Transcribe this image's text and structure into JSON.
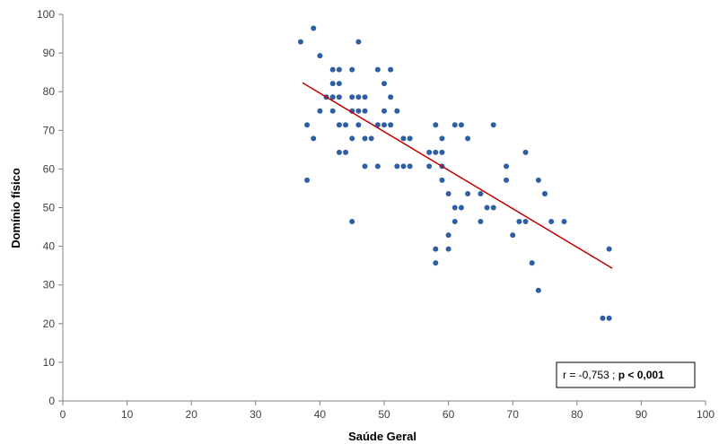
{
  "chart_data": {
    "type": "scatter",
    "title": "",
    "xlabel": "Saúde Geral",
    "ylabel": "Domínio físico",
    "xlim": [
      0,
      100
    ],
    "ylim": [
      0,
      100
    ],
    "xticks": [
      "0",
      "10",
      "20",
      "30",
      "40",
      "50",
      "60",
      "70",
      "80",
      "90",
      "100"
    ],
    "yticks": [
      "0",
      "10",
      "20",
      "30",
      "40",
      "50",
      "60",
      "70",
      "80",
      "90",
      "100"
    ],
    "grid": false,
    "legend": "none",
    "point_color": "#2E5FA3",
    "trend_color": "#C00000",
    "points": [
      [
        37,
        92.9
      ],
      [
        38,
        57.1
      ],
      [
        38,
        71.4
      ],
      [
        39,
        96.4
      ],
      [
        39,
        67.9
      ],
      [
        40,
        89.3
      ],
      [
        40,
        75.0
      ],
      [
        41,
        78.6
      ],
      [
        42,
        85.7
      ],
      [
        42,
        82.1
      ],
      [
        42,
        78.6
      ],
      [
        42,
        75.0
      ],
      [
        43,
        85.7
      ],
      [
        43,
        82.1
      ],
      [
        43,
        71.4
      ],
      [
        43,
        64.3
      ],
      [
        43,
        78.6
      ],
      [
        44,
        71.4
      ],
      [
        44,
        64.3
      ],
      [
        45,
        67.9
      ],
      [
        45,
        85.7
      ],
      [
        45,
        78.6
      ],
      [
        45,
        75.0
      ],
      [
        45,
        46.4
      ],
      [
        46,
        78.6
      ],
      [
        46,
        75.0
      ],
      [
        46,
        92.9
      ],
      [
        46,
        71.4
      ],
      [
        47,
        75.0
      ],
      [
        47,
        67.9
      ],
      [
        47,
        60.7
      ],
      [
        47,
        78.6
      ],
      [
        48,
        67.9
      ],
      [
        49,
        85.7
      ],
      [
        49,
        71.4
      ],
      [
        49,
        60.7
      ],
      [
        50,
        71.4
      ],
      [
        50,
        82.1
      ],
      [
        50,
        75.0
      ],
      [
        51,
        78.6
      ],
      [
        51,
        71.4
      ],
      [
        51,
        85.7
      ],
      [
        52,
        75.0
      ],
      [
        52,
        60.7
      ],
      [
        53,
        60.7
      ],
      [
        53,
        67.9
      ],
      [
        54,
        67.9
      ],
      [
        54,
        60.7
      ],
      [
        57,
        64.3
      ],
      [
        57,
        60.7
      ],
      [
        58,
        71.4
      ],
      [
        58,
        64.3
      ],
      [
        58,
        39.3
      ],
      [
        58,
        35.7
      ],
      [
        59,
        67.9
      ],
      [
        59,
        64.3
      ],
      [
        59,
        60.7
      ],
      [
        59,
        57.1
      ],
      [
        60,
        53.6
      ],
      [
        60,
        42.9
      ],
      [
        60,
        39.3
      ],
      [
        61,
        71.4
      ],
      [
        61,
        50.0
      ],
      [
        61,
        46.4
      ],
      [
        62,
        71.4
      ],
      [
        62,
        50.0
      ],
      [
        63,
        67.9
      ],
      [
        63,
        53.6
      ],
      [
        65,
        53.6
      ],
      [
        65,
        46.4
      ],
      [
        66,
        50.0
      ],
      [
        67,
        71.4
      ],
      [
        67,
        50.0
      ],
      [
        69,
        60.7
      ],
      [
        69,
        57.1
      ],
      [
        70,
        42.9
      ],
      [
        71,
        46.4
      ],
      [
        72,
        64.3
      ],
      [
        72,
        46.4
      ],
      [
        73,
        35.7
      ],
      [
        74,
        28.6
      ],
      [
        74,
        57.1
      ],
      [
        75,
        53.6
      ],
      [
        75,
        53.6
      ],
      [
        76,
        46.4
      ],
      [
        78,
        46.4
      ],
      [
        84,
        21.4
      ],
      [
        85,
        21.4
      ],
      [
        85,
        39.3
      ]
    ],
    "trend_line": {
      "x": [
        37.3,
        85.5
      ],
      "y": [
        82.3,
        34.3
      ]
    },
    "annotation": {
      "prefix": "r = -0,753 ; ",
      "bold": "p < 0,001"
    }
  }
}
